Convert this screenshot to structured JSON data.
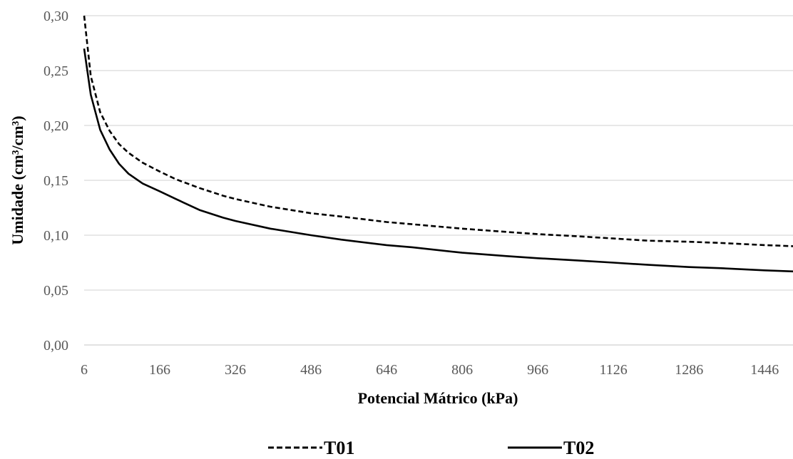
{
  "chart_data": {
    "type": "line",
    "title": "",
    "xlabel": "Potencial Mátrico (kPa)",
    "ylabel": "Umidade  (cm³/cm³)",
    "xlim": [
      6,
      1506
    ],
    "ylim": [
      0,
      0.3
    ],
    "x_ticks": [
      "6",
      "166",
      "326",
      "486",
      "646",
      "806",
      "966",
      "1126",
      "1286",
      "1446"
    ],
    "y_ticks": [
      "0,00",
      "0,05",
      "0,10",
      "0,15",
      "0,20",
      "0,25",
      "0,30"
    ],
    "grid": "horizontal",
    "legend_position": "bottom",
    "series": [
      {
        "name": "T01",
        "style": "dashed",
        "color": "#000000",
        "x": [
          6,
          20,
          40,
          60,
          80,
          100,
          130,
          166,
          200,
          250,
          300,
          326,
          400,
          486,
          550,
          646,
          700,
          806,
          900,
          966,
          1050,
          1126,
          1200,
          1286,
          1350,
          1446,
          1506
        ],
        "y": [
          0.3,
          0.245,
          0.212,
          0.195,
          0.183,
          0.175,
          0.166,
          0.158,
          0.151,
          0.143,
          0.136,
          0.133,
          0.126,
          0.12,
          0.117,
          0.112,
          0.11,
          0.106,
          0.103,
          0.101,
          0.099,
          0.097,
          0.095,
          0.094,
          0.093,
          0.091,
          0.09
        ]
      },
      {
        "name": "T02",
        "style": "solid",
        "color": "#000000",
        "x": [
          6,
          20,
          40,
          60,
          80,
          100,
          130,
          166,
          200,
          250,
          300,
          326,
          400,
          486,
          550,
          646,
          700,
          806,
          900,
          966,
          1050,
          1126,
          1200,
          1286,
          1350,
          1446,
          1506
        ],
        "y": [
          0.27,
          0.228,
          0.196,
          0.178,
          0.165,
          0.156,
          0.147,
          0.14,
          0.133,
          0.123,
          0.116,
          0.113,
          0.106,
          0.1,
          0.096,
          0.091,
          0.089,
          0.084,
          0.081,
          0.079,
          0.077,
          0.075,
          0.073,
          0.071,
          0.07,
          0.068,
          0.067
        ]
      }
    ]
  }
}
